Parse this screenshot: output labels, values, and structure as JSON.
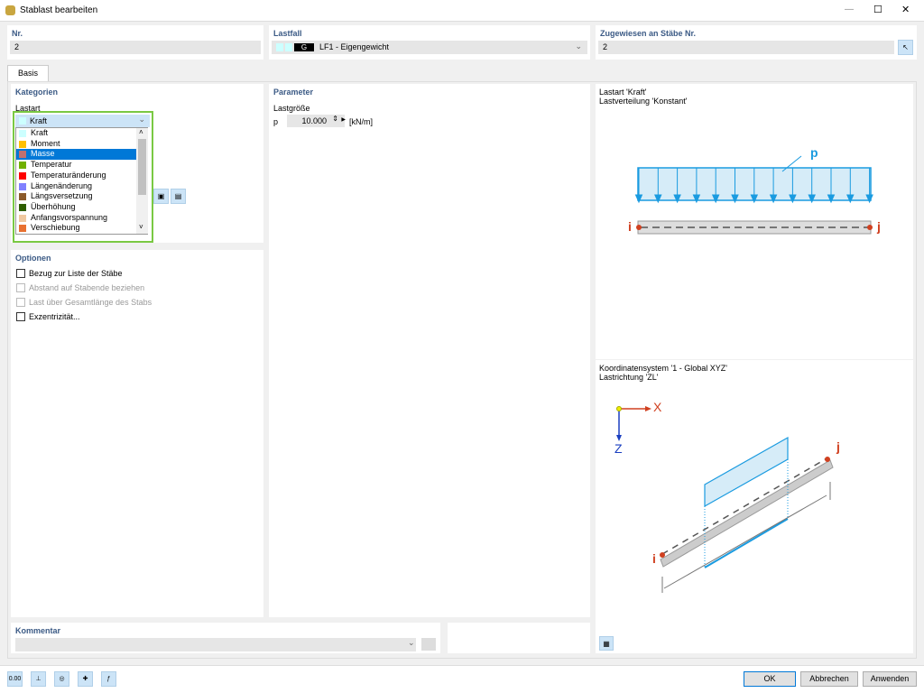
{
  "window": {
    "title": "Stablast bearbeiten",
    "min": "—",
    "max": "☐",
    "close": "✕"
  },
  "nr": {
    "label": "Nr.",
    "value": "2"
  },
  "lastfall": {
    "label": "Lastfall",
    "badge": "G",
    "value": "LF1 - Eigengewicht"
  },
  "zugewiesen": {
    "label": "Zugewiesen an Stäbe Nr.",
    "value": "2"
  },
  "tabs": [
    {
      "label": "Basis"
    }
  ],
  "kategorien": {
    "title": "Kategorien",
    "lastart_label": "Lastart",
    "selected": "Kraft",
    "options": [
      {
        "label": "Kraft",
        "color": "#ccffff"
      },
      {
        "label": "Moment",
        "color": "#ffc000"
      },
      {
        "label": "Masse",
        "color": "#c07070"
      },
      {
        "label": "Temperatur",
        "color": "#70b000"
      },
      {
        "label": "Temperaturänderung",
        "color": "#ff0000"
      },
      {
        "label": "Längenänderung",
        "color": "#8080ff"
      },
      {
        "label": "Längsversetzung",
        "color": "#8b5a2b"
      },
      {
        "label": "Überhöhung",
        "color": "#2e5e00"
      },
      {
        "label": "Anfangsvorspannung",
        "color": "#f0c8a0"
      },
      {
        "label": "Verschiebung",
        "color": "#e87030"
      }
    ],
    "highlighted": "Masse"
  },
  "optionen": {
    "title": "Optionen",
    "items": [
      {
        "label": "Bezug zur Liste der Stäbe",
        "enabled": true,
        "checked": false
      },
      {
        "label": "Abstand auf Stabende beziehen",
        "enabled": false,
        "checked": false
      },
      {
        "label": "Last über Gesamtlänge des Stabs",
        "enabled": false,
        "checked": false
      },
      {
        "label": "Exzentrizität...",
        "enabled": true,
        "checked": false
      }
    ]
  },
  "parameter": {
    "title": "Parameter",
    "group": "Lastgröße",
    "symbol": "p",
    "value": "10.000",
    "unit": "[kN/m]"
  },
  "preview_top": {
    "line1": "Lastart 'Kraft'",
    "line2": "Lastverteilung 'Konstant'",
    "p": "p",
    "i": "i",
    "j": "j"
  },
  "preview_bottom": {
    "line1": "Koordinatensystem '1 - Global XYZ'",
    "line2": "Lastrichtung 'ZL'",
    "x": "X",
    "z": "Z",
    "i": "i",
    "j": "j"
  },
  "kommentar": {
    "title": "Kommentar",
    "value": ""
  },
  "buttons": {
    "ok": "OK",
    "cancel": "Abbrechen",
    "apply": "Anwenden"
  },
  "toolbar_icons": [
    "value-0.00-icon",
    "section-icon",
    "view-icon",
    "member-icon",
    "formula-icon"
  ],
  "colors": {
    "accent": "#0078d7",
    "load": "#1a9be0",
    "green_focus": "#7ac943",
    "node": "#d04020"
  }
}
